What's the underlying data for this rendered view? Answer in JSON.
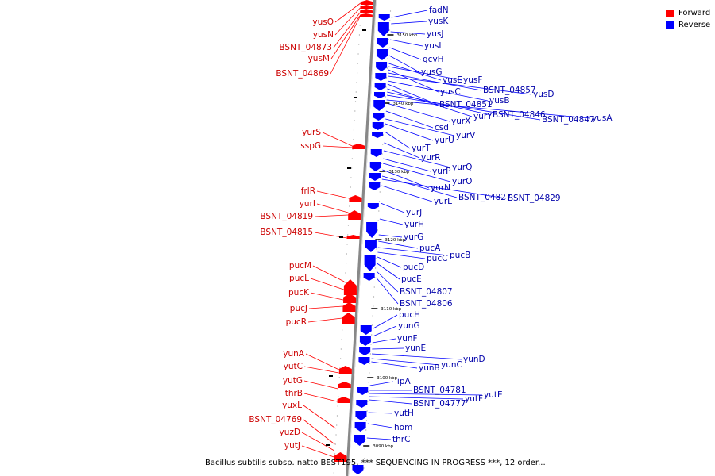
{
  "legend": {
    "forward_label": "Forward",
    "reverse_label": "Reverse",
    "forward_color": "#ff0000",
    "reverse_color": "#0000ff"
  },
  "caption": "Bacillus subtilis subsp. natto BEST195, *** SEQUENCING IN PROGRESS ***, 12 order...",
  "axis_label_color": "#000000",
  "backbone_color": "#888888",
  "ticks": [
    "3150 kbp",
    "3140 kbp",
    "3130 kbp",
    "3120 kbp",
    "3110 kbp",
    "3100 kbp",
    "3090 kbp"
  ],
  "forward_genes": [
    "yusO",
    "yusN",
    "BSNT_04873",
    "yusM",
    "BSNT_04869",
    "yurS",
    "sspG",
    "frlR",
    "yurI",
    "BSNT_04819",
    "BSNT_04815",
    "pucM",
    "pucL",
    "pucK",
    "pucJ",
    "pucR",
    "yunA",
    "yutC",
    "yutG",
    "thrB",
    "yuxL",
    "BSNT_04769",
    "yuzD",
    "yutJ"
  ],
  "reverse_genes": [
    "fadN",
    "yusK",
    "yusJ",
    "yusI",
    "gcvH",
    "yusG",
    "yusE",
    "yusF",
    "yusC",
    "BSNT_04857",
    "yusD",
    "yusB",
    "BSNT_04851",
    "yurY",
    "BSNT_04846",
    "BSNT_04847",
    "yusA",
    "yurX",
    "csd",
    "yurV",
    "yurU",
    "yurT",
    "yurR",
    "yurQ",
    "yurP",
    "yurO",
    "yurN",
    "BSNT_04827",
    "BSNT_04829",
    "yurL",
    "yurJ",
    "yurH",
    "yurG",
    "pucA",
    "pucB",
    "pucC",
    "pucD",
    "pucE",
    "BSNT_04807",
    "BSNT_04806",
    "pucH",
    "yunG",
    "yunF",
    "yunE",
    "yunD",
    "yunC",
    "yunB",
    "lipA",
    "BSNT_04781",
    "yutE",
    "yutF",
    "BSNT_04777",
    "yutH",
    "hom",
    "thrC"
  ]
}
